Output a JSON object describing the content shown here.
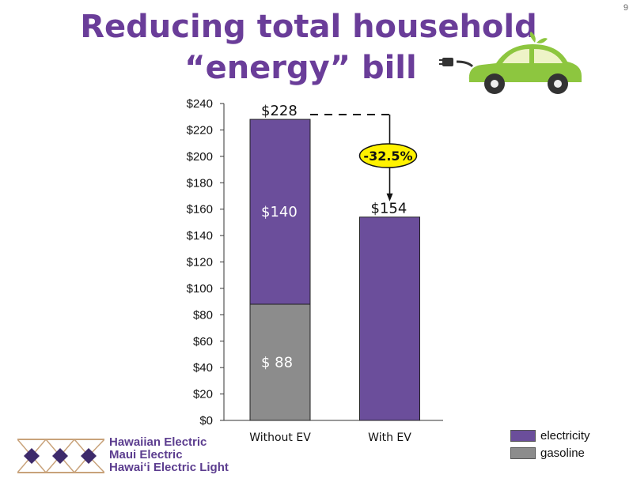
{
  "slide_number": "9",
  "title_line1": "Reducing total household",
  "title_line2": "“energy” bill",
  "colors": {
    "electricity": "#6b4e9b",
    "gasoline": "#8c8c8c",
    "title": "#6a3d99",
    "callout_fill": "#fff200",
    "car_body": "#8dc63f"
  },
  "chart_data": {
    "type": "bar",
    "stacked": true,
    "categories": [
      "Without EV",
      "With EV"
    ],
    "series": [
      {
        "name": "gasoline",
        "values": [
          88,
          0
        ]
      },
      {
        "name": "electricity",
        "values": [
          140,
          154
        ]
      }
    ],
    "totals": [
      228,
      154
    ],
    "total_labels": [
      "$228",
      "$154"
    ],
    "segment_labels": {
      "gasoline": [
        "$  88",
        ""
      ],
      "electricity": [
        "$140",
        ""
      ]
    },
    "ylim": [
      0,
      240
    ],
    "yticks": [
      0,
      20,
      40,
      60,
      80,
      100,
      120,
      140,
      160,
      180,
      200,
      220,
      240
    ],
    "ytick_labels": [
      "$0",
      "$20",
      "$40",
      "$60",
      "$80",
      "$100",
      "$120",
      "$140",
      "$160",
      "$180",
      "$200",
      "$220",
      "$240"
    ],
    "annotation": "-32.5%",
    "legend": [
      "electricity",
      "gasoline"
    ],
    "legend_position": "bottom-right",
    "grid": false
  },
  "legend_items": [
    {
      "label": "electricity",
      "color": "#6b4e9b"
    },
    {
      "label": "gasoline",
      "color": "#8c8c8c"
    }
  ],
  "company_lines": [
    "Hawaiian Electric",
    "Maui Electric",
    "Hawaiʻi Electric Light"
  ],
  "icons": {
    "car": "electric-car-icon",
    "logo": "company-diamond-logo"
  }
}
